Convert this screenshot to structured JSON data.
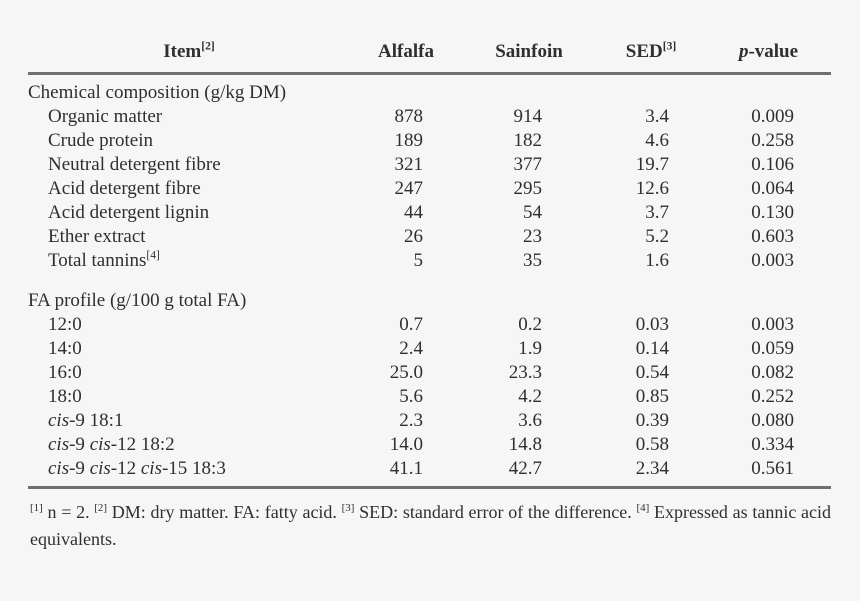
{
  "page": {
    "background_color": "#f6f6f6",
    "text_color": "#2f2f2f",
    "rule_color": "#6f6f6f"
  },
  "table": {
    "columns": [
      {
        "key": "item",
        "label": [
          {
            "t": "Item"
          },
          {
            "t": "[2]",
            "s": "sup"
          }
        ]
      },
      {
        "key": "alfalfa",
        "label": [
          {
            "t": "Alfalfa"
          }
        ]
      },
      {
        "key": "sainfoin",
        "label": [
          {
            "t": "Sainfoin"
          }
        ]
      },
      {
        "key": "sed",
        "label": [
          {
            "t": "SED"
          },
          {
            "t": "[3]",
            "s": "sup"
          }
        ]
      },
      {
        "key": "p-value",
        "label": [
          {
            "t": "p",
            "s": "i"
          },
          {
            "t": "-value"
          }
        ]
      }
    ],
    "sections": [
      {
        "title": "Chemical composition (g/kg DM)",
        "rows": [
          {
            "item": [
              {
                "t": "Organic matter"
              }
            ],
            "values": [
              "878",
              "914",
              "3.4",
              "0.009"
            ]
          },
          {
            "item": [
              {
                "t": "Crude protein"
              }
            ],
            "values": [
              "189",
              "182",
              "4.6",
              "0.258"
            ]
          },
          {
            "item": [
              {
                "t": "Neutral detergent fibre"
              }
            ],
            "values": [
              "321",
              "377",
              "19.7",
              "0.106"
            ]
          },
          {
            "item": [
              {
                "t": "Acid detergent fibre"
              }
            ],
            "values": [
              "247",
              "295",
              "12.6",
              "0.064"
            ]
          },
          {
            "item": [
              {
                "t": "Acid detergent lignin"
              }
            ],
            "values": [
              "44",
              "54",
              "3.7",
              "0.130"
            ]
          },
          {
            "item": [
              {
                "t": "Ether extract"
              }
            ],
            "values": [
              "26",
              "23",
              "5.2",
              "0.603"
            ]
          },
          {
            "item": [
              {
                "t": "Total tannins"
              },
              {
                "t": "[4]",
                "s": "sup"
              }
            ],
            "values": [
              "5",
              "35",
              "1.6",
              "0.003"
            ]
          }
        ]
      },
      {
        "title": "FA profile (g/100 g total FA)",
        "rows": [
          {
            "item": [
              {
                "t": "12:0"
              }
            ],
            "values": [
              "0.7",
              "0.2",
              "0.03",
              "0.003"
            ]
          },
          {
            "item": [
              {
                "t": "14:0"
              }
            ],
            "values": [
              "2.4",
              "1.9",
              "0.14",
              "0.059"
            ]
          },
          {
            "item": [
              {
                "t": "16:0"
              }
            ],
            "values": [
              "25.0",
              "23.3",
              "0.54",
              "0.082"
            ]
          },
          {
            "item": [
              {
                "t": "18:0"
              }
            ],
            "values": [
              "5.6",
              "4.2",
              "0.85",
              "0.252"
            ]
          },
          {
            "item": [
              {
                "t": "cis",
                "s": "i"
              },
              {
                "t": "-9 18:1"
              }
            ],
            "values": [
              "2.3",
              "3.6",
              "0.39",
              "0.080"
            ]
          },
          {
            "item": [
              {
                "t": "cis",
                "s": "i"
              },
              {
                "t": "-9 "
              },
              {
                "t": "cis",
                "s": "i"
              },
              {
                "t": "-12 18:2"
              }
            ],
            "values": [
              "14.0",
              "14.8",
              "0.58",
              "0.334"
            ]
          },
          {
            "item": [
              {
                "t": "cis",
                "s": "i"
              },
              {
                "t": "-9 "
              },
              {
                "t": "cis",
                "s": "i"
              },
              {
                "t": "-12 "
              },
              {
                "t": "cis",
                "s": "i"
              },
              {
                "t": "-15 18:3"
              }
            ],
            "values": [
              "41.1",
              "42.7",
              "2.34",
              "0.561"
            ]
          }
        ]
      }
    ],
    "footnote": [
      {
        "t": "[1]",
        "s": "sup"
      },
      {
        "t": " n = 2. "
      },
      {
        "t": "[2]",
        "s": "sup"
      },
      {
        "t": " DM: dry matter. FA: fatty acid. "
      },
      {
        "t": "[3]",
        "s": "sup"
      },
      {
        "t": " SED: standard error of the difference. "
      },
      {
        "t": "[4]",
        "s": "sup"
      },
      {
        "t": " Expressed as tannic acid equivalents."
      }
    ]
  }
}
